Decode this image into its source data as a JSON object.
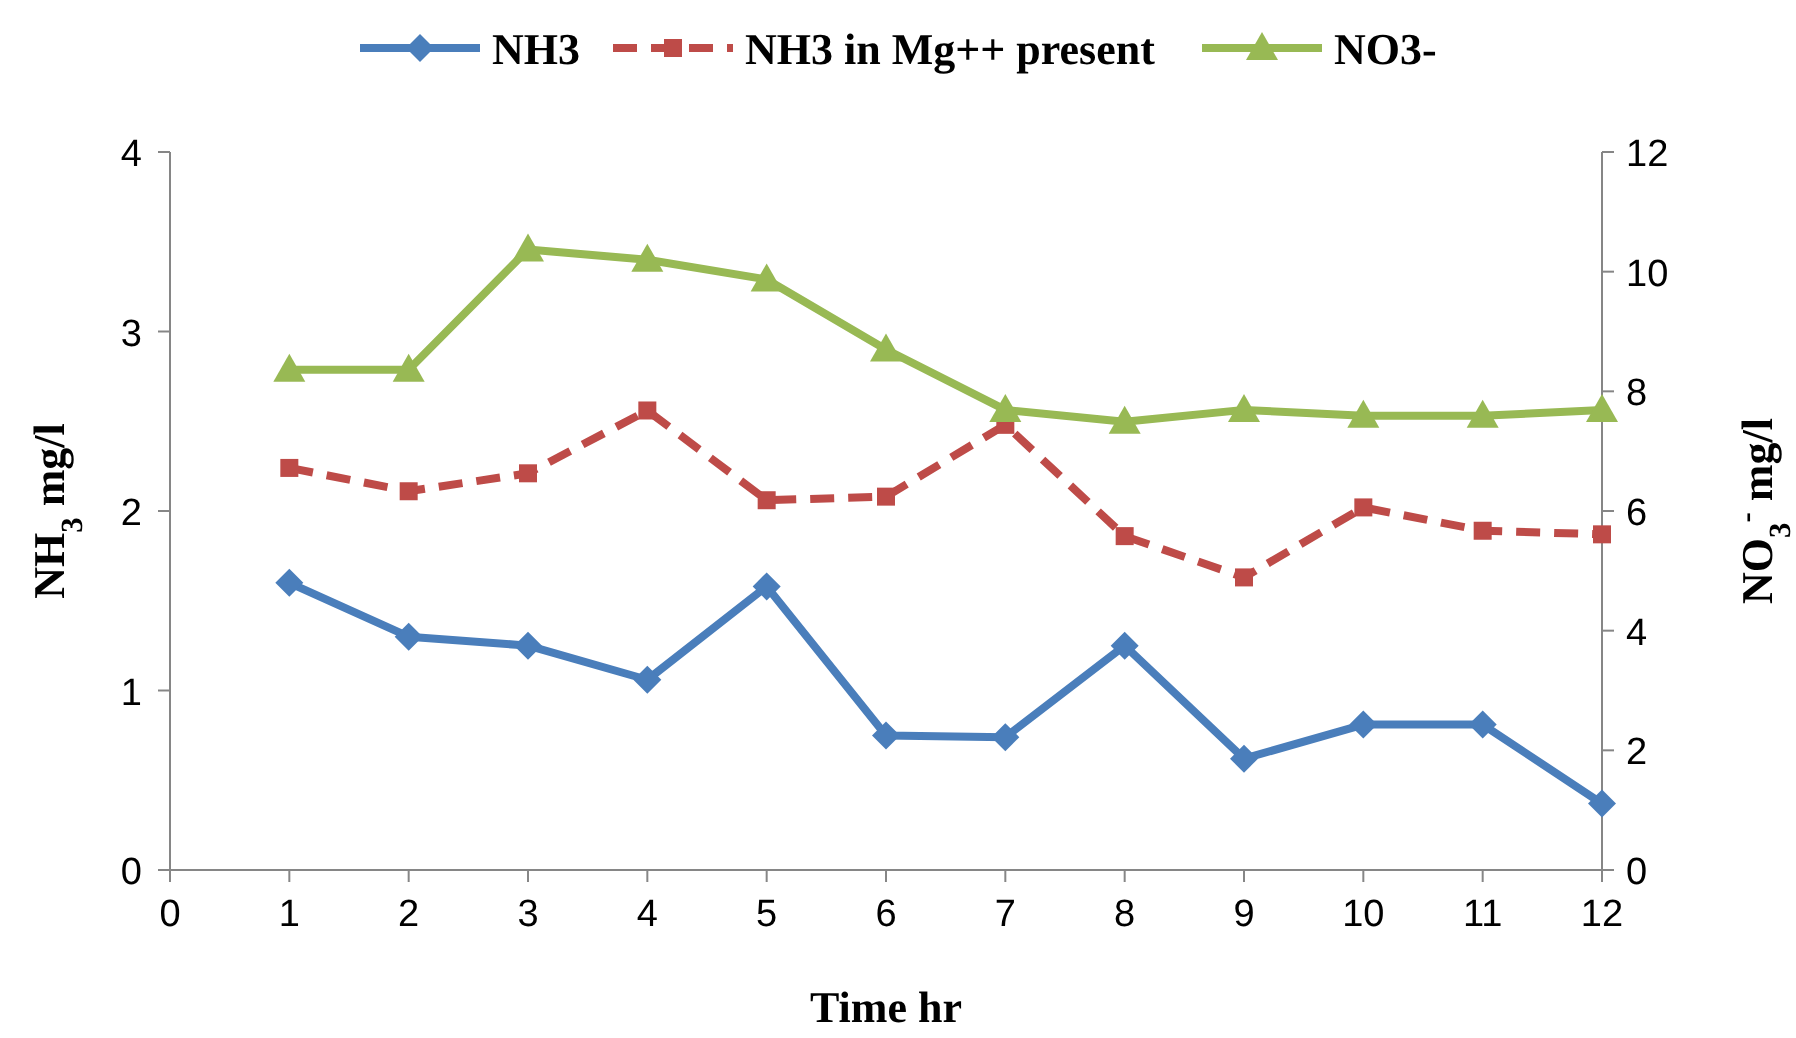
{
  "chart_data": {
    "type": "line",
    "xlabel": "Time hr",
    "ylabel": "NH$_{3}$ mg/l",
    "y2label": "NO$_{3}$$^{-}$ mg/l",
    "x": [
      1,
      2,
      3,
      4,
      5,
      6,
      7,
      8,
      9,
      10,
      11,
      12
    ],
    "xlim": [
      0,
      12
    ],
    "xticks": [
      0,
      1,
      2,
      3,
      4,
      5,
      6,
      7,
      8,
      9,
      10,
      11,
      12
    ],
    "ylim": [
      0,
      4
    ],
    "yticks": [
      0,
      1,
      2,
      3,
      4
    ],
    "y2lim": [
      0,
      12
    ],
    "y2ticks": [
      0,
      2,
      4,
      6,
      8,
      10,
      12
    ],
    "legend": "top",
    "grid": false,
    "series": [
      {
        "name": "NH3",
        "color": "#4a7ebb",
        "marker": "diamond",
        "line_style": "solid",
        "values": [
          1.6,
          1.3,
          1.25,
          1.06,
          1.58,
          0.75,
          0.74,
          1.25,
          0.62,
          0.81,
          0.81,
          0.37
        ]
      },
      {
        "name": "NH3 in Mg++ present",
        "color": "#be4b48",
        "marker": "square",
        "line_style": "dashed",
        "values": [
          2.24,
          2.11,
          2.21,
          2.56,
          2.06,
          2.08,
          2.48,
          1.86,
          1.63,
          2.02,
          1.89,
          1.87
        ]
      },
      {
        "name": "NO3-",
        "color": "#98b954",
        "marker": "triangle",
        "line_style": "solid",
        "axis": "y2",
        "values": [
          8.36,
          8.36,
          10.37,
          10.2,
          9.87,
          8.7,
          7.69,
          7.49,
          7.69,
          7.59,
          7.59,
          7.69
        ]
      }
    ]
  }
}
